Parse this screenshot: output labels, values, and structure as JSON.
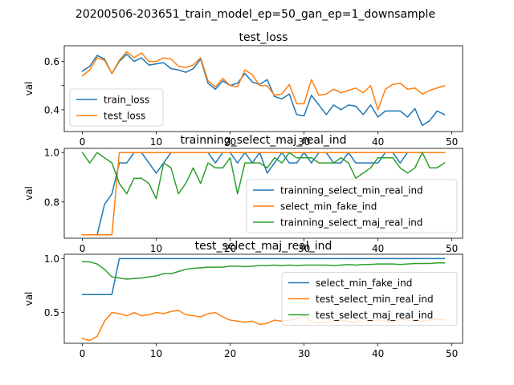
{
  "figure": {
    "suptitle": "20200506-203651_train_model_ep=50_gan_ep=1_downsample"
  },
  "chart_data": [
    {
      "type": "line",
      "title": "test_loss",
      "xlabel": "",
      "ylabel": "val",
      "xlim": [
        -2.45,
        51.45
      ],
      "ylim": [
        0.31,
        0.665
      ],
      "xticks": [
        0,
        10,
        20,
        30,
        40,
        50
      ],
      "yticks": [
        0.4,
        0.5,
        0.6
      ],
      "ytick_labels": [
        "0.4",
        "",
        "0.6"
      ],
      "legend_loc": "lower-left",
      "x": [
        0,
        1,
        2,
        3,
        4,
        5,
        6,
        7,
        8,
        9,
        10,
        11,
        12,
        13,
        14,
        15,
        16,
        17,
        18,
        19,
        20,
        21,
        22,
        23,
        24,
        25,
        26,
        27,
        28,
        29,
        30,
        31,
        32,
        33,
        34,
        35,
        36,
        37,
        38,
        39,
        40,
        41,
        42,
        43,
        44,
        45,
        46,
        47,
        48,
        49
      ],
      "series": [
        {
          "name": "train_loss",
          "color": "#1f77b4",
          "values": [
            0.56,
            0.58,
            0.625,
            0.61,
            0.55,
            0.6,
            0.63,
            0.6,
            0.615,
            0.585,
            0.59,
            0.595,
            0.57,
            0.565,
            0.555,
            0.57,
            0.61,
            0.51,
            0.485,
            0.52,
            0.5,
            0.51,
            0.55,
            0.515,
            0.505,
            0.525,
            0.455,
            0.445,
            0.465,
            0.38,
            0.375,
            0.46,
            0.42,
            0.38,
            0.42,
            0.4,
            0.42,
            0.415,
            0.38,
            0.42,
            0.37,
            0.395,
            0.395,
            0.395,
            0.37,
            0.405,
            0.335,
            0.355,
            0.395,
            0.38
          ]
        },
        {
          "name": "test_loss",
          "color": "#ff7f0e",
          "values": [
            0.54,
            0.565,
            0.615,
            0.605,
            0.55,
            0.605,
            0.64,
            0.615,
            0.635,
            0.6,
            0.6,
            0.615,
            0.61,
            0.58,
            0.575,
            0.585,
            0.615,
            0.52,
            0.495,
            0.53,
            0.5,
            0.495,
            0.565,
            0.545,
            0.5,
            0.5,
            0.46,
            0.465,
            0.505,
            0.425,
            0.425,
            0.525,
            0.46,
            0.465,
            0.485,
            0.47,
            0.48,
            0.49,
            0.47,
            0.5,
            0.4,
            0.485,
            0.505,
            0.51,
            0.485,
            0.49,
            0.465,
            0.48,
            0.49,
            0.5
          ]
        }
      ]
    },
    {
      "type": "line",
      "title": "trainning_select_maj_real_ind",
      "xlabel": "",
      "ylabel": "val",
      "xlim": [
        -2.45,
        51.45
      ],
      "ylim": [
        0.653,
        1.017
      ],
      "xticks": [
        0,
        10,
        20,
        30,
        40,
        50
      ],
      "yticks": [
        0.8,
        1.0
      ],
      "ytick_labels": [
        "0.8",
        "1.0"
      ],
      "legend_loc": "lower-right",
      "x": [
        0,
        1,
        2,
        3,
        4,
        5,
        6,
        7,
        8,
        9,
        10,
        11,
        12,
        13,
        14,
        15,
        16,
        17,
        18,
        19,
        20,
        21,
        22,
        23,
        24,
        25,
        26,
        27,
        28,
        29,
        30,
        31,
        32,
        33,
        34,
        35,
        36,
        37,
        38,
        39,
        40,
        41,
        42,
        43,
        44,
        45,
        46,
        47,
        48,
        49
      ],
      "series": [
        {
          "name": "trainning_select_min_real_ind",
          "color": "#1f77b4",
          "values": [
            0.667,
            0.667,
            0.667,
            0.79,
            0.833,
            0.958,
            0.958,
            1.0,
            1.0,
            0.958,
            0.917,
            0.958,
            1.0,
            1.0,
            1.0,
            1.0,
            1.0,
            1.0,
            0.958,
            1.0,
            1.0,
            0.958,
            1.0,
            0.958,
            1.0,
            0.917,
            0.958,
            1.0,
            0.958,
            0.958,
            1.0,
            0.958,
            1.0,
            1.0,
            0.958,
            0.958,
            1.0,
            0.958,
            0.958,
            0.958,
            0.958,
            1.0,
            1.0,
            0.958,
            1.0,
            1.0,
            1.0,
            1.0,
            1.0,
            1.0
          ]
        },
        {
          "name": "select_min_fake_ind",
          "color": "#ff7f0e",
          "values": [
            0.667,
            0.667,
            0.667,
            0.667,
            0.667,
            1.0,
            1.0,
            1.0,
            1.0,
            1.0,
            1.0,
            1.0,
            1.0,
            1.0,
            1.0,
            1.0,
            1.0,
            1.0,
            1.0,
            1.0,
            1.0,
            1.0,
            1.0,
            1.0,
            1.0,
            1.0,
            1.0,
            1.0,
            1.0,
            1.0,
            1.0,
            1.0,
            1.0,
            1.0,
            1.0,
            1.0,
            1.0,
            1.0,
            1.0,
            1.0,
            1.0,
            1.0,
            1.0,
            1.0,
            1.0,
            1.0,
            1.0,
            1.0,
            1.0,
            1.0
          ]
        },
        {
          "name": "trainning_select_maj_real_ind",
          "color": "#2ca02c",
          "values": [
            1.0,
            0.958,
            1.0,
            0.979,
            0.958,
            0.875,
            0.833,
            0.896,
            0.896,
            0.875,
            0.813,
            0.958,
            0.938,
            0.833,
            0.875,
            0.938,
            0.875,
            0.958,
            0.938,
            0.938,
            0.979,
            0.833,
            0.958,
            0.958,
            0.958,
            0.938,
            0.979,
            0.958,
            1.0,
            0.979,
            0.979,
            0.979,
            0.958,
            0.958,
            0.958,
            0.979,
            0.958,
            0.896,
            0.917,
            0.938,
            0.979,
            0.979,
            0.979,
            0.938,
            0.917,
            0.938,
            1.0,
            0.938,
            0.938,
            0.958
          ]
        }
      ]
    },
    {
      "type": "line",
      "title": "test_select_maj_real_ind",
      "xlabel": "",
      "ylabel": "val",
      "xlim": [
        -2.45,
        51.45
      ],
      "ylim": [
        0.215,
        1.04
      ],
      "xticks": [
        0,
        10,
        20,
        30,
        40,
        50
      ],
      "yticks": [
        0.5,
        1.0
      ],
      "ytick_labels": [
        "0.5",
        "1.0"
      ],
      "legend_loc": "right",
      "x": [
        0,
        1,
        2,
        3,
        4,
        5,
        6,
        7,
        8,
        9,
        10,
        11,
        12,
        13,
        14,
        15,
        16,
        17,
        18,
        19,
        20,
        21,
        22,
        23,
        24,
        25,
        26,
        27,
        28,
        29,
        30,
        31,
        32,
        33,
        34,
        35,
        36,
        37,
        38,
        39,
        40,
        41,
        42,
        43,
        44,
        45,
        46,
        47,
        48,
        49
      ],
      "series": [
        {
          "name": "select_min_fake_ind",
          "color": "#1f77b4",
          "values": [
            0.667,
            0.667,
            0.667,
            0.667,
            0.667,
            1.0,
            1.0,
            1.0,
            1.0,
            1.0,
            1.0,
            1.0,
            1.0,
            1.0,
            1.0,
            1.0,
            1.0,
            1.0,
            1.0,
            1.0,
            1.0,
            1.0,
            1.0,
            1.0,
            1.0,
            1.0,
            1.0,
            1.0,
            1.0,
            1.0,
            1.0,
            1.0,
            1.0,
            1.0,
            1.0,
            1.0,
            1.0,
            1.0,
            1.0,
            1.0,
            1.0,
            1.0,
            1.0,
            1.0,
            1.0,
            1.0,
            1.0,
            1.0,
            1.0,
            1.0
          ]
        },
        {
          "name": "test_select_min_real_ind",
          "color": "#ff7f0e",
          "values": [
            0.26,
            0.24,
            0.28,
            0.42,
            0.5,
            0.49,
            0.47,
            0.5,
            0.47,
            0.48,
            0.5,
            0.49,
            0.51,
            0.52,
            0.48,
            0.47,
            0.46,
            0.49,
            0.5,
            0.46,
            0.43,
            0.42,
            0.41,
            0.42,
            0.39,
            0.4,
            0.43,
            0.42,
            0.43,
            0.44,
            0.47,
            0.42,
            0.4,
            0.41,
            0.42,
            0.43,
            0.42,
            0.41,
            0.44,
            0.42,
            0.43,
            0.42,
            0.41,
            0.44,
            0.43,
            0.42,
            0.42,
            0.43,
            0.44,
            0.43
          ]
        },
        {
          "name": "test_select_maj_real_ind",
          "color": "#2ca02c",
          "values": [
            0.97,
            0.97,
            0.95,
            0.9,
            0.83,
            0.82,
            0.81,
            0.815,
            0.82,
            0.83,
            0.84,
            0.86,
            0.86,
            0.88,
            0.9,
            0.91,
            0.915,
            0.92,
            0.92,
            0.92,
            0.93,
            0.93,
            0.925,
            0.93,
            0.935,
            0.935,
            0.94,
            0.935,
            0.94,
            0.935,
            0.94,
            0.94,
            0.94,
            0.94,
            0.935,
            0.94,
            0.945,
            0.94,
            0.945,
            0.945,
            0.95,
            0.95,
            0.95,
            0.945,
            0.95,
            0.955,
            0.955,
            0.955,
            0.96,
            0.96
          ]
        }
      ]
    }
  ]
}
